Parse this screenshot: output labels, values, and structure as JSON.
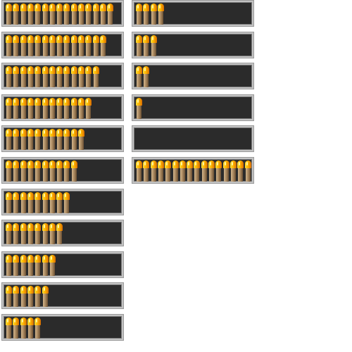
{
  "ammo_bars": [
    {
      "rounds": 15
    },
    {
      "rounds": 14
    },
    {
      "rounds": 13
    },
    {
      "rounds": 12
    },
    {
      "rounds": 11
    },
    {
      "rounds": 10
    },
    {
      "rounds": 9
    },
    {
      "rounds": 8
    },
    {
      "rounds": 7
    },
    {
      "rounds": 6
    },
    {
      "rounds": 5
    },
    {
      "rounds": 4
    },
    {
      "rounds": 3
    },
    {
      "rounds": 2
    },
    {
      "rounds": 1
    },
    {
      "rounds": 0
    },
    {
      "rounds": 16
    }
  ],
  "colors": {
    "bar_background": "#2b2b2b",
    "frame": "#c3c3c3",
    "bullet_tip": "#ffb800",
    "bullet_casing": "#a8875e"
  },
  "icon": "bullet-icon"
}
